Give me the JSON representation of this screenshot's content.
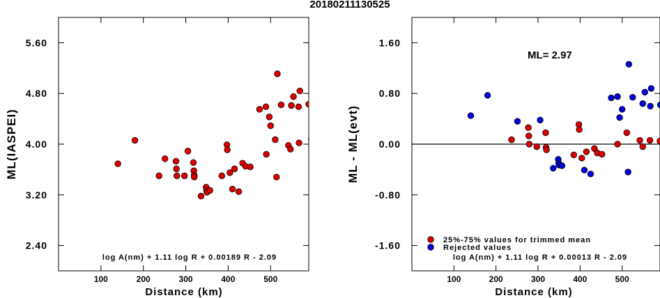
{
  "figure_title": "20180211130525",
  "chart_data": [
    {
      "type": "scatter",
      "title": "",
      "xlabel": "Distance (km)",
      "ylabel": "ML(IASPEI)",
      "xlim": [
        0,
        590
      ],
      "ylim": [
        2.0,
        6.0
      ],
      "x_ticks": [
        100,
        200,
        300,
        400,
        500
      ],
      "y_ticks": [
        2.4,
        3.2,
        4.0,
        4.8,
        5.6
      ],
      "y_tick_labels": [
        "2.40",
        "3.20",
        "4.00",
        "4.80",
        "5.60"
      ],
      "grid": false,
      "annotation": "log A(nm) + 1.11 log R + 0.00189 R - 2.09",
      "series": [
        {
          "color": "#dd0000",
          "points": [
            [
              140,
              3.69
            ],
            [
              180,
              4.06
            ],
            [
              237,
              3.5
            ],
            [
              251,
              3.77
            ],
            [
              277,
              3.73
            ],
            [
              278,
              3.61
            ],
            [
              279,
              3.5
            ],
            [
              297,
              3.5
            ],
            [
              305,
              3.89
            ],
            [
              318,
              3.71
            ],
            [
              319,
              3.58
            ],
            [
              320,
              3.51
            ],
            [
              320,
              3.48
            ],
            [
              336,
              3.18
            ],
            [
              348,
              3.32
            ],
            [
              349,
              3.27
            ],
            [
              350,
              3.24
            ],
            [
              357,
              3.27
            ],
            [
              385,
              3.5
            ],
            [
              397,
              3.99
            ],
            [
              398,
              3.91
            ],
            [
              404,
              3.55
            ],
            [
              410,
              3.29
            ],
            [
              415,
              3.61
            ],
            [
              425,
              3.25
            ],
            [
              434,
              3.7
            ],
            [
              441,
              3.65
            ],
            [
              452,
              3.64
            ],
            [
              474,
              4.55
            ],
            [
              489,
              4.59
            ],
            [
              490,
              3.84
            ],
            [
              497,
              4.43
            ],
            [
              500,
              4.29
            ],
            [
              511,
              4.07
            ],
            [
              514,
              3.48
            ],
            [
              516,
              5.11
            ],
            [
              525,
              4.62
            ],
            [
              542,
              3.98
            ],
            [
              547,
              3.92
            ],
            [
              549,
              4.61
            ],
            [
              554,
              4.75
            ],
            [
              566,
              4.59
            ],
            [
              567,
              4.02
            ],
            [
              569,
              4.84
            ],
            [
              590,
              4.63
            ],
            [
              596,
              4.08
            ]
          ]
        }
      ]
    },
    {
      "type": "scatter",
      "title": "",
      "xlabel": "Distance (km)",
      "ylabel": "ML - ML(evt)",
      "xlim": [
        0,
        590
      ],
      "ylim": [
        -2.0,
        2.0
      ],
      "x_ticks": [
        100,
        200,
        300,
        400,
        500
      ],
      "y_ticks": [
        -1.6,
        -0.8,
        0.0,
        0.8,
        1.6
      ],
      "y_tick_labels": [
        "-1.60",
        "-0.80",
        "0.00",
        "0.80",
        "1.60"
      ],
      "grid": false,
      "reference_line_y": 0.0,
      "annotation_ml": "ML= 2.97",
      "annotation": "log A(nm) + 1.11 log R + 0.00013 R - 2.09",
      "legend_position": "bottom-left",
      "series": [
        {
          "name": "25%-75% values for trimmed mean",
          "color": "#dd0000",
          "points": [
            [
              237,
              0.07
            ],
            [
              277,
              0.26
            ],
            [
              278,
              0.13
            ],
            [
              279,
              0.0
            ],
            [
              297,
              -0.04
            ],
            [
              318,
              0.18
            ],
            [
              319,
              -0.05
            ],
            [
              320,
              -0.09
            ],
            [
              385,
              -0.17
            ],
            [
              397,
              0.31
            ],
            [
              398,
              0.23
            ],
            [
              404,
              -0.22
            ],
            [
              415,
              -0.12
            ],
            [
              434,
              -0.07
            ],
            [
              441,
              -0.14
            ],
            [
              452,
              -0.16
            ],
            [
              489,
              0.0
            ],
            [
              511,
              0.18
            ],
            [
              542,
              0.06
            ],
            [
              549,
              -0.04
            ],
            [
              566,
              0.06
            ],
            [
              590,
              0.05
            ]
          ]
        },
        {
          "name": "Rejected values",
          "color": "#0000dd",
          "points": [
            [
              140,
              0.45
            ],
            [
              180,
              0.77
            ],
            [
              251,
              0.36
            ],
            [
              305,
              0.38
            ],
            [
              336,
              -0.38
            ],
            [
              348,
              -0.24
            ],
            [
              349,
              -0.3
            ],
            [
              350,
              -0.33
            ],
            [
              357,
              -0.34
            ],
            [
              410,
              -0.41
            ],
            [
              425,
              -0.47
            ],
            [
              474,
              0.73
            ],
            [
              489,
              0.75
            ],
            [
              494,
              0.42
            ],
            [
              500,
              0.55
            ],
            [
              514,
              -0.44
            ],
            [
              516,
              1.26
            ],
            [
              525,
              0.74
            ],
            [
              549,
              0.64
            ],
            [
              554,
              0.82
            ],
            [
              567,
              0.6
            ],
            [
              569,
              0.88
            ],
            [
              591,
              0.62
            ]
          ]
        }
      ]
    }
  ]
}
